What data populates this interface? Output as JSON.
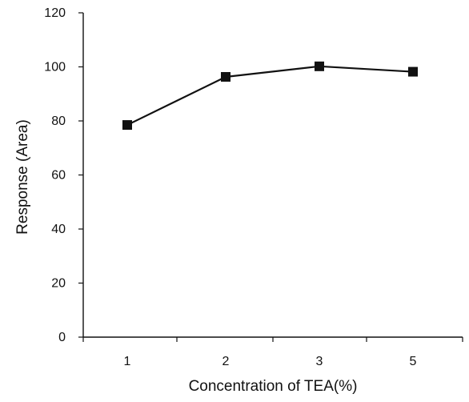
{
  "chart_data": {
    "type": "line",
    "categories": [
      "1",
      "2",
      "3",
      "5"
    ],
    "series": [
      {
        "values": [
          78.5,
          96.3,
          100.2,
          98.2
        ],
        "color": "#111111",
        "marker": "square"
      }
    ],
    "xlabel": "Concentration of TEA(%)",
    "ylabel": "Response (Area)",
    "ylim": [
      0,
      120
    ],
    "yticks": [
      0,
      20,
      40,
      60,
      80,
      100,
      120
    ],
    "grid": false
  }
}
